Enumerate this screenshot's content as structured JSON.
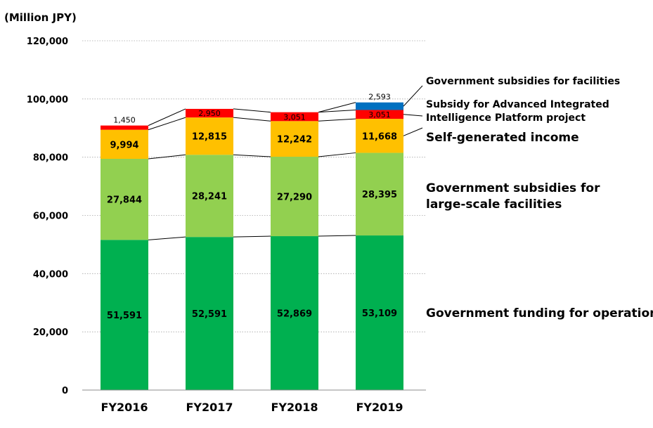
{
  "chart_data": {
    "type": "bar",
    "stacked": true,
    "unit_label": "(Million JPY)",
    "categories": [
      "FY2016",
      "FY2017",
      "FY2018",
      "FY2019"
    ],
    "ylim": [
      0,
      120000
    ],
    "yticks": [
      0,
      20000,
      40000,
      60000,
      80000,
      100000,
      120000
    ],
    "ytick_labels": [
      "0",
      "20,000",
      "40,000",
      "60,000",
      "80,000",
      "100,000",
      "120,000"
    ],
    "grid": true,
    "series": [
      {
        "name": "Government funding for operations",
        "color": "#00b050",
        "values": [
          51591,
          52591,
          52869,
          53109
        ],
        "labels": [
          "51,591",
          "52,591",
          "52,869",
          "53,109"
        ]
      },
      {
        "name": "Government subsidies for large-scale facilities",
        "color": "#92d050",
        "values": [
          27844,
          28241,
          27290,
          28395
        ],
        "labels": [
          "27,844",
          "28,241",
          "27,290",
          "28,395"
        ]
      },
      {
        "name": "Self-generated income",
        "color": "#ffc000",
        "values": [
          9994,
          12815,
          12242,
          11668
        ],
        "labels": [
          "9,994",
          "12,815",
          "12,242",
          "11,668"
        ]
      },
      {
        "name": "Subsidy for Advanced Integrated Intelligence Platform project",
        "color": "#ff0000",
        "values": [
          1450,
          2950,
          3051,
          3051
        ],
        "labels": [
          "1,450",
          "2,950",
          "3,051",
          "3,051"
        ]
      },
      {
        "name": "Government subsidies for facilities",
        "color": "#0070c0",
        "values": [
          0,
          0,
          0,
          2593
        ],
        "labels": [
          "",
          "",
          "",
          "2,593"
        ]
      }
    ],
    "legend": {
      "placement": "right",
      "items": [
        {
          "lines": [
            "Government subsidies for facilities"
          ]
        },
        {
          "lines": [
            "Subsidy for Advanced Integrated",
            "Intelligence Platform project"
          ]
        },
        {
          "lines": [
            "Self-generated income"
          ]
        },
        {
          "lines": [
            "Government subsidies for",
            "large-scale facilities"
          ]
        },
        {
          "lines": [
            "Government funding for operations"
          ]
        }
      ]
    }
  }
}
